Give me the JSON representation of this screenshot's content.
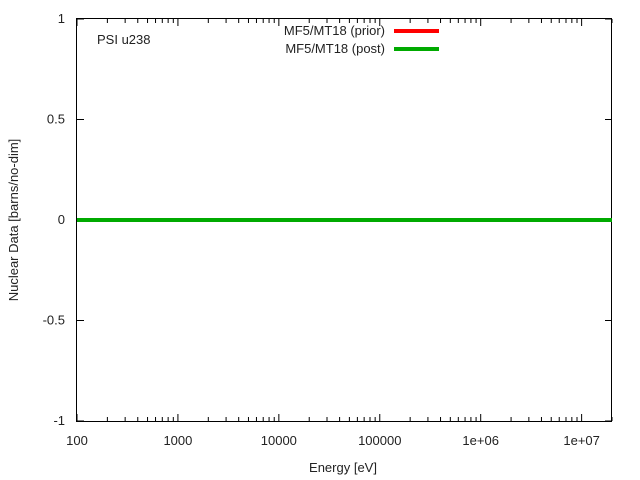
{
  "chart_data": {
    "type": "line",
    "annotation": "PSI u238",
    "xlabel": "Energy [eV]",
    "ylabel": "Nuclear Data [barns/no-dim]",
    "xscale": "log",
    "xlim": [
      100,
      20000000
    ],
    "ylim": [
      -1,
      1
    ],
    "grid": false,
    "legend_position": "top-center",
    "x_ticks": [
      {
        "value": 100,
        "label": "100"
      },
      {
        "value": 1000,
        "label": "1000"
      },
      {
        "value": 10000,
        "label": "10000"
      },
      {
        "value": 100000,
        "label": "100000"
      },
      {
        "value": 1000000,
        "label": "1e+06"
      },
      {
        "value": 10000000,
        "label": "1e+07"
      }
    ],
    "y_ticks": [
      {
        "value": 1,
        "label": "1"
      },
      {
        "value": 0.5,
        "label": "0.5"
      },
      {
        "value": 0,
        "label": "0"
      },
      {
        "value": -0.5,
        "label": "-0.5"
      },
      {
        "value": -1,
        "label": "-1"
      }
    ],
    "series": [
      {
        "name": "MF5/MT18 (prior)",
        "color": "#ff0000",
        "x": [
          100,
          20000000
        ],
        "y": [
          0,
          0
        ]
      },
      {
        "name": "MF5/MT18 (post)",
        "color": "#00aa00",
        "x": [
          100,
          20000000
        ],
        "y": [
          0,
          0
        ]
      }
    ]
  }
}
